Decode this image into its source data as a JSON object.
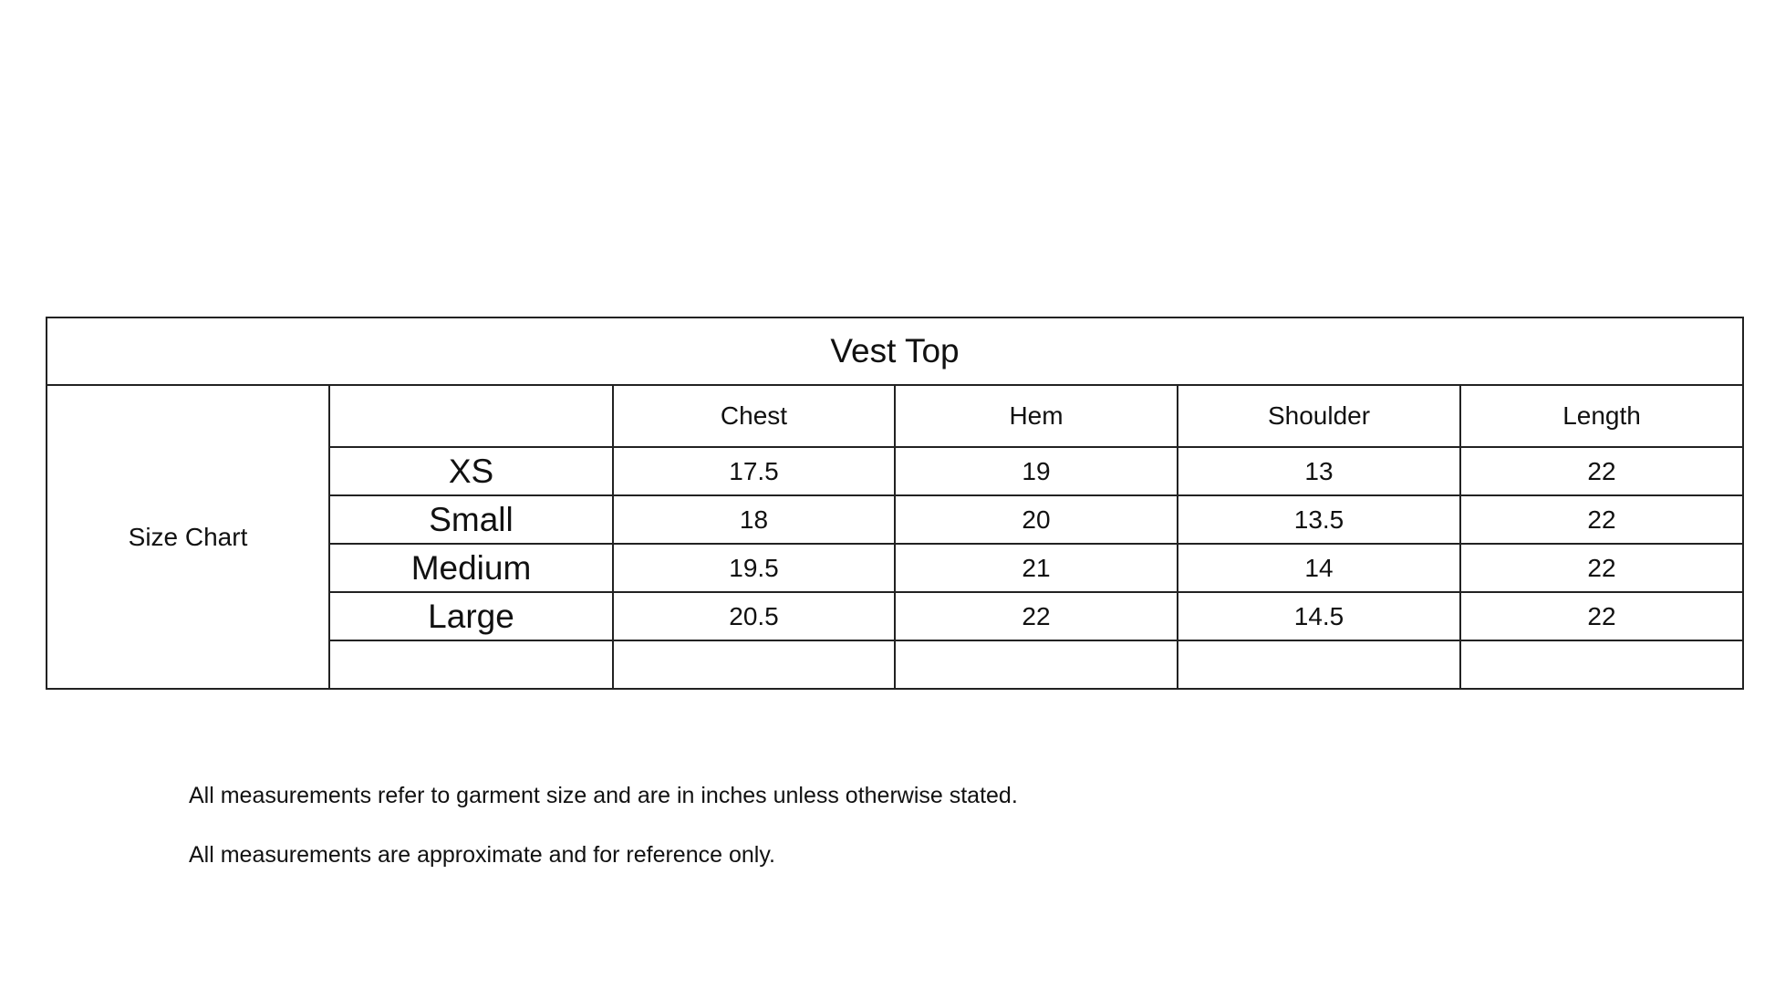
{
  "table": {
    "title": "Vest Top",
    "side_label": "Size Chart",
    "columns": [
      "Chest",
      "Hem",
      "Shoulder",
      "Length"
    ],
    "rows": [
      {
        "size": "XS",
        "values": [
          "17.5",
          "19",
          "13",
          "22"
        ]
      },
      {
        "size": "Small",
        "values": [
          "18",
          "20",
          "13.5",
          "22"
        ]
      },
      {
        "size": "Medium",
        "values": [
          "19.5",
          "21",
          "14",
          "22"
        ]
      },
      {
        "size": "Large",
        "values": [
          "20.5",
          "22",
          "14.5",
          "22"
        ]
      }
    ]
  },
  "notes": [
    "All measurements refer to garment size and are in inches unless otherwise stated.",
    "All measurements are approximate and for reference only."
  ]
}
